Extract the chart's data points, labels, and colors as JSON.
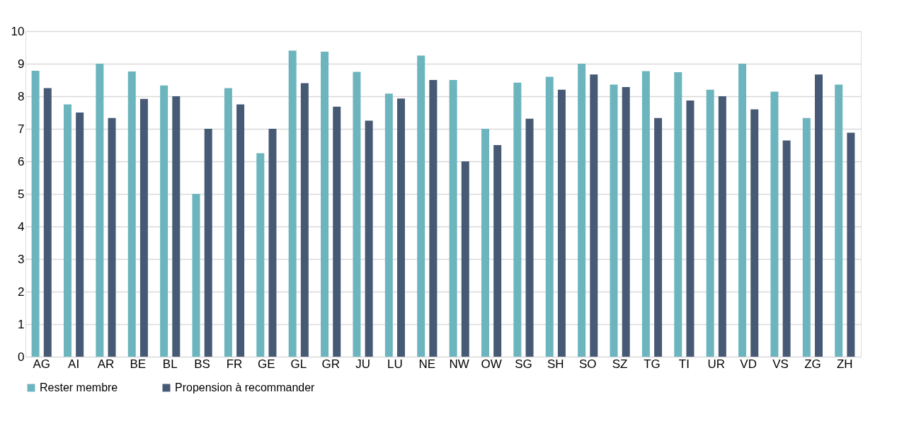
{
  "chart_data": {
    "type": "bar",
    "categories": [
      "AG",
      "AI",
      "AR",
      "BE",
      "BL",
      "BS",
      "FR",
      "GE",
      "GL",
      "GR",
      "JU",
      "LU",
      "NE",
      "NW",
      "OW",
      "SG",
      "SH",
      "SO",
      "SZ",
      "TG",
      "TI",
      "UR",
      "VD",
      "VS",
      "ZG",
      "ZH"
    ],
    "series": [
      {
        "name": "Rester membre",
        "color": "#6cb5be",
        "values": [
          8.78,
          7.75,
          9.0,
          8.76,
          8.33,
          5.0,
          8.25,
          6.25,
          9.4,
          9.37,
          8.75,
          8.08,
          9.25,
          8.5,
          7.0,
          8.42,
          8.6,
          9.0,
          8.36,
          8.77,
          8.74,
          8.2,
          9.0,
          8.14,
          7.33,
          8.36
        ]
      },
      {
        "name": "Propension à recommander",
        "color": "#465a75",
        "values": [
          8.25,
          7.5,
          7.33,
          7.92,
          8.0,
          7.0,
          7.75,
          7.0,
          8.4,
          7.68,
          7.25,
          7.93,
          8.5,
          6.0,
          6.5,
          7.31,
          8.2,
          8.67,
          8.28,
          7.33,
          7.87,
          8.0,
          7.6,
          6.64,
          8.67,
          6.88
        ]
      }
    ],
    "ylim": [
      0,
      10
    ],
    "yticks": [
      0,
      1,
      2,
      3,
      4,
      5,
      6,
      7,
      8,
      9,
      10
    ],
    "grid": "y",
    "legend": "bottom"
  }
}
